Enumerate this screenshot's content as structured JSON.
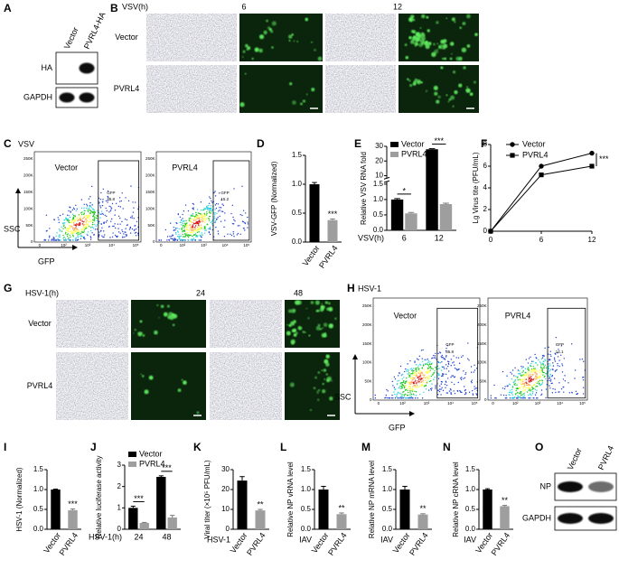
{
  "panel_labels": [
    "A",
    "B",
    "C",
    "D",
    "E",
    "F",
    "G",
    "H",
    "I",
    "J",
    "K",
    "L",
    "M",
    "N",
    "O"
  ],
  "blot_A": {
    "lanes": [
      "Vector",
      "PVRL4-HA"
    ],
    "rows": [
      "HA",
      "GAPDH"
    ]
  },
  "microscopy_B": {
    "virus": "VSV(h)",
    "times": [
      "6",
      "12"
    ],
    "rows": [
      "Vector",
      "PVRL4"
    ]
  },
  "flow_C": {
    "virus": "VSV",
    "y_axis": "SSC",
    "x_axis": "GFP",
    "yticks": [
      "0",
      "50K",
      "100K",
      "150K",
      "200K",
      "250K"
    ],
    "xticks": [
      "0",
      "10²",
      "10³",
      "10⁴",
      "10⁵"
    ],
    "plots": [
      {
        "name": "Vector",
        "gate": "GFP",
        "percent": "35.8"
      },
      {
        "name": "PVRL4",
        "gate": "GFP",
        "percent": "15.2"
      }
    ]
  },
  "microscopy_G": {
    "virus": "HSV-1(h)",
    "times": [
      "24",
      "48"
    ],
    "rows": [
      "Vector",
      "PVRL4"
    ]
  },
  "flow_H": {
    "virus": "HSV-1",
    "y_axis": "SSC",
    "x_axis": "GFP",
    "yticks": [
      "0",
      "50K",
      "100K",
      "150K",
      "200K",
      "250K"
    ],
    "xticks": [
      "0",
      "10²",
      "10³",
      "10⁴",
      "10⁵"
    ],
    "plots": [
      {
        "name": "Vector",
        "gate": "GFP",
        "percent": "35.8"
      },
      {
        "name": "PVRL4",
        "gate": "GFP",
        "percent": "14.1"
      }
    ]
  },
  "blot_O": {
    "lanes": [
      "Vector",
      "PVRL4"
    ],
    "rows": [
      "NP",
      "GAPDH"
    ]
  },
  "chart_data": [
    {
      "type": "bar",
      "ylabel": "VSV-GFP (Normalized)",
      "categories": [
        "Vector",
        "PVRL4"
      ],
      "values": [
        1.0,
        0.38
      ],
      "errors": [
        0.03,
        0.02
      ],
      "colors": [
        "#000000",
        "#9e9e9e"
      ],
      "ylim": [
        0,
        1.5
      ],
      "yticks": [
        {
          "value": 0,
          "label": "0.0"
        },
        0.5,
        {
          "value": 1,
          "label": "1.0"
        },
        1.5
      ],
      "annotations": [
        "***"
      ]
    },
    {
      "type": "bar",
      "ylabel": "Relative VSV RNA fold",
      "xlabel": "VSV(h)",
      "categories": [
        "6",
        "12"
      ],
      "series": [
        {
          "name": "Vector",
          "color": "#000000",
          "values": [
            1.0,
            28
          ],
          "errors": [
            0.03,
            0.4
          ]
        },
        {
          "name": "PVRL4",
          "color": "#9e9e9e",
          "values": [
            0.55,
            0.85
          ],
          "errors": [
            0.03,
            0.03
          ]
        }
      ],
      "ylim": [
        0,
        30
      ],
      "ybreak": [
        1.5,
        10
      ],
      "yticks": [
        {
          "value": 0,
          "label": "0.0"
        },
        0.5,
        {
          "value": 1,
          "label": "1.0"
        },
        1.5,
        10,
        20,
        30
      ],
      "annotations": [
        "*",
        "***"
      ]
    },
    {
      "type": "line",
      "ylabel": "Lg Virus tite (PFU/mL)",
      "x": [
        0,
        6,
        12
      ],
      "series": [
        {
          "name": "Vector",
          "color": "#000000",
          "marker": "circle",
          "values": [
            0,
            6,
            7.2
          ]
        },
        {
          "name": "PVRL4",
          "color": "#000000",
          "marker": "square",
          "values": [
            0,
            5.2,
            6
          ]
        }
      ],
      "xlim": [
        0,
        12
      ],
      "ylim": [
        0,
        8
      ],
      "xticks": [
        0,
        6,
        12
      ],
      "yticks": [
        0,
        2,
        4,
        6,
        8
      ],
      "annotations": [
        "***"
      ]
    },
    {
      "type": "bar",
      "ylabel": "HSV-1 (Normalized)",
      "categories": [
        "Vector",
        "PVRL4"
      ],
      "values": [
        1.0,
        0.48
      ],
      "errors": [
        0.01,
        0.03
      ],
      "colors": [
        "#000000",
        "#9e9e9e"
      ],
      "ylim": [
        0,
        1.5
      ],
      "yticks": [
        {
          "value": 0,
          "label": "0.0"
        },
        0.5,
        {
          "value": 1,
          "label": "1.0"
        },
        1.5
      ],
      "annotations": [
        "***"
      ]
    },
    {
      "type": "bar",
      "ylabel": "Relative luciferase activity",
      "xlabel": "HSV-1(h)",
      "categories": [
        "24",
        "48"
      ],
      "series": [
        {
          "name": "Vector",
          "color": "#000000",
          "values": [
            1.0,
            2.45
          ],
          "errors": [
            0.08,
            0.05
          ]
        },
        {
          "name": "PVRL4",
          "color": "#9e9e9e",
          "values": [
            0.3,
            0.55
          ],
          "errors": [
            0.02,
            0.1
          ]
        }
      ],
      "ylim": [
        0,
        3
      ],
      "yticks": [
        0,
        1,
        2,
        3
      ],
      "annotations": [
        "***",
        "***"
      ]
    },
    {
      "type": "bar",
      "ylabel": "Viral titer (×10⁵ PFU/mL)",
      "xlabel": "HSV-1",
      "categories": [
        "Vector",
        "PVRL4"
      ],
      "values": [
        24.5,
        9.5
      ],
      "errors": [
        2,
        0.5
      ],
      "colors": [
        "#000000",
        "#9e9e9e"
      ],
      "ylim": [
        0,
        30
      ],
      "yticks": [
        0,
        10,
        20,
        30
      ],
      "annotations": [
        "**"
      ]
    },
    {
      "type": "bar",
      "ylabel": "Relative NP vRNA level",
      "xlabel": "IAV",
      "categories": [
        "Vector",
        "PVRL4"
      ],
      "values": [
        1.0,
        0.38
      ],
      "errors": [
        0.08,
        0.03
      ],
      "colors": [
        "#000000",
        "#9e9e9e"
      ],
      "ylim": [
        0,
        1.5
      ],
      "yticks": [
        {
          "value": 0,
          "label": "0.0"
        },
        0.5,
        {
          "value": 1,
          "label": "1.0"
        },
        1.5
      ],
      "annotations": [
        "**"
      ]
    },
    {
      "type": "bar",
      "ylabel": "Relative NP mRNA level",
      "xlabel": "IAV",
      "categories": [
        "Vector",
        "PVRL4"
      ],
      "values": [
        1.0,
        0.37
      ],
      "errors": [
        0.08,
        0.02
      ],
      "colors": [
        "#000000",
        "#9e9e9e"
      ],
      "ylim": [
        0,
        1.5
      ],
      "yticks": [
        {
          "value": 0,
          "label": "0.0"
        },
        0.5,
        {
          "value": 1,
          "label": "1.0"
        },
        1.5
      ],
      "annotations": [
        "**"
      ]
    },
    {
      "type": "bar",
      "ylabel": "Relative NP cRNA level",
      "xlabel": "IAV",
      "categories": [
        "Vector",
        "PVRL4"
      ],
      "values": [
        1.0,
        0.58
      ],
      "errors": [
        0.02,
        0.02
      ],
      "colors": [
        "#000000",
        "#9e9e9e"
      ],
      "ylim": [
        0,
        1.5
      ],
      "yticks": [
        {
          "value": 0,
          "label": "0.0"
        },
        0.5,
        {
          "value": 1,
          "label": "1.0"
        },
        1.5
      ],
      "annotations": [
        "**"
      ]
    }
  ]
}
